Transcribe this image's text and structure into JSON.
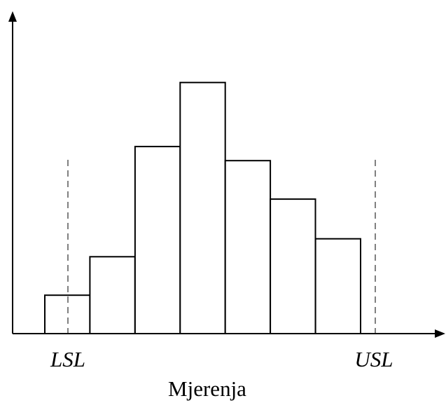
{
  "chart_data": {
    "type": "bar",
    "categories": [
      "",
      "",
      "",
      "",
      "",
      "",
      ""
    ],
    "values": [
      3,
      6,
      14.6,
      19.6,
      13.5,
      10.5,
      7.4
    ],
    "xlabel": "Mjerenja",
    "ylabel": "",
    "ylim": [
      0,
      25
    ],
    "grid": false,
    "legend": "none",
    "reference_lines": [
      {
        "label": "LSL",
        "style": "dashed"
      },
      {
        "label": "USL",
        "style": "dashed"
      }
    ],
    "colors": {
      "bar_fill": "#ffffff",
      "bar_edge": "#000000",
      "axis": "#000000"
    }
  }
}
